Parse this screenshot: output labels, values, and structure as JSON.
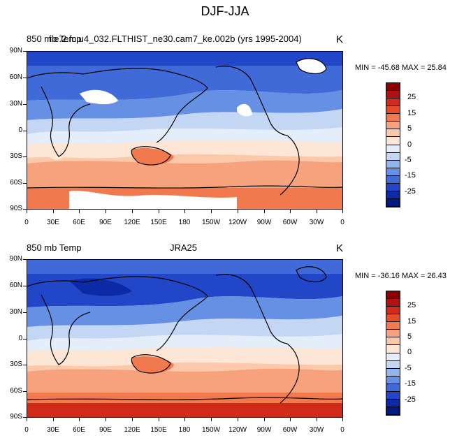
{
  "figure": {
    "title": "DJF-JJA"
  },
  "panels": [
    {
      "left_label": "850 mb Temp",
      "center_label": "f.e.2.fc.u4_032.FLTHIST_ne30.cam7_ke.002b (yrs 1995-2004)",
      "units": "K",
      "stats": "MIN = -45.68 MAX =  25.84"
    },
    {
      "left_label": "850 mb Temp",
      "center_label": "JRA25",
      "units": "K",
      "stats": "MIN = -36.16 MAX =  26.43"
    }
  ],
  "axes": {
    "lat_labels": [
      "90N",
      "60N",
      "30N",
      "0",
      "30S",
      "60S",
      "90S"
    ],
    "lon_labels": [
      "0",
      "30E",
      "60E",
      "90E",
      "120E",
      "150E",
      "180",
      "150W",
      "120W",
      "90W",
      "60W",
      "30W",
      "0"
    ]
  },
  "colorbar": {
    "labels": [
      "25",
      "15",
      "5",
      "0",
      "-5",
      "-15",
      "-25"
    ],
    "colors": [
      "#8b0000",
      "#b01212",
      "#d02a1a",
      "#e84d2a",
      "#f07a4e",
      "#f6a27c",
      "#fbc9aa",
      "#fde6d6",
      "#e4eefa",
      "#c3d7f4",
      "#94b5ec",
      "#6690e4",
      "#3f6ad8",
      "#2147c8",
      "#0c2aa6",
      "#001a80"
    ]
  },
  "colors": {
    "polar_cold": "#0c2aa6",
    "mid_cold": "#3f6ad8",
    "cool": "#94b5ec",
    "neutral": "#fde6d6",
    "warm": "#f6a27c",
    "hot": "#d02a1a",
    "missing": "#ffffff"
  }
}
